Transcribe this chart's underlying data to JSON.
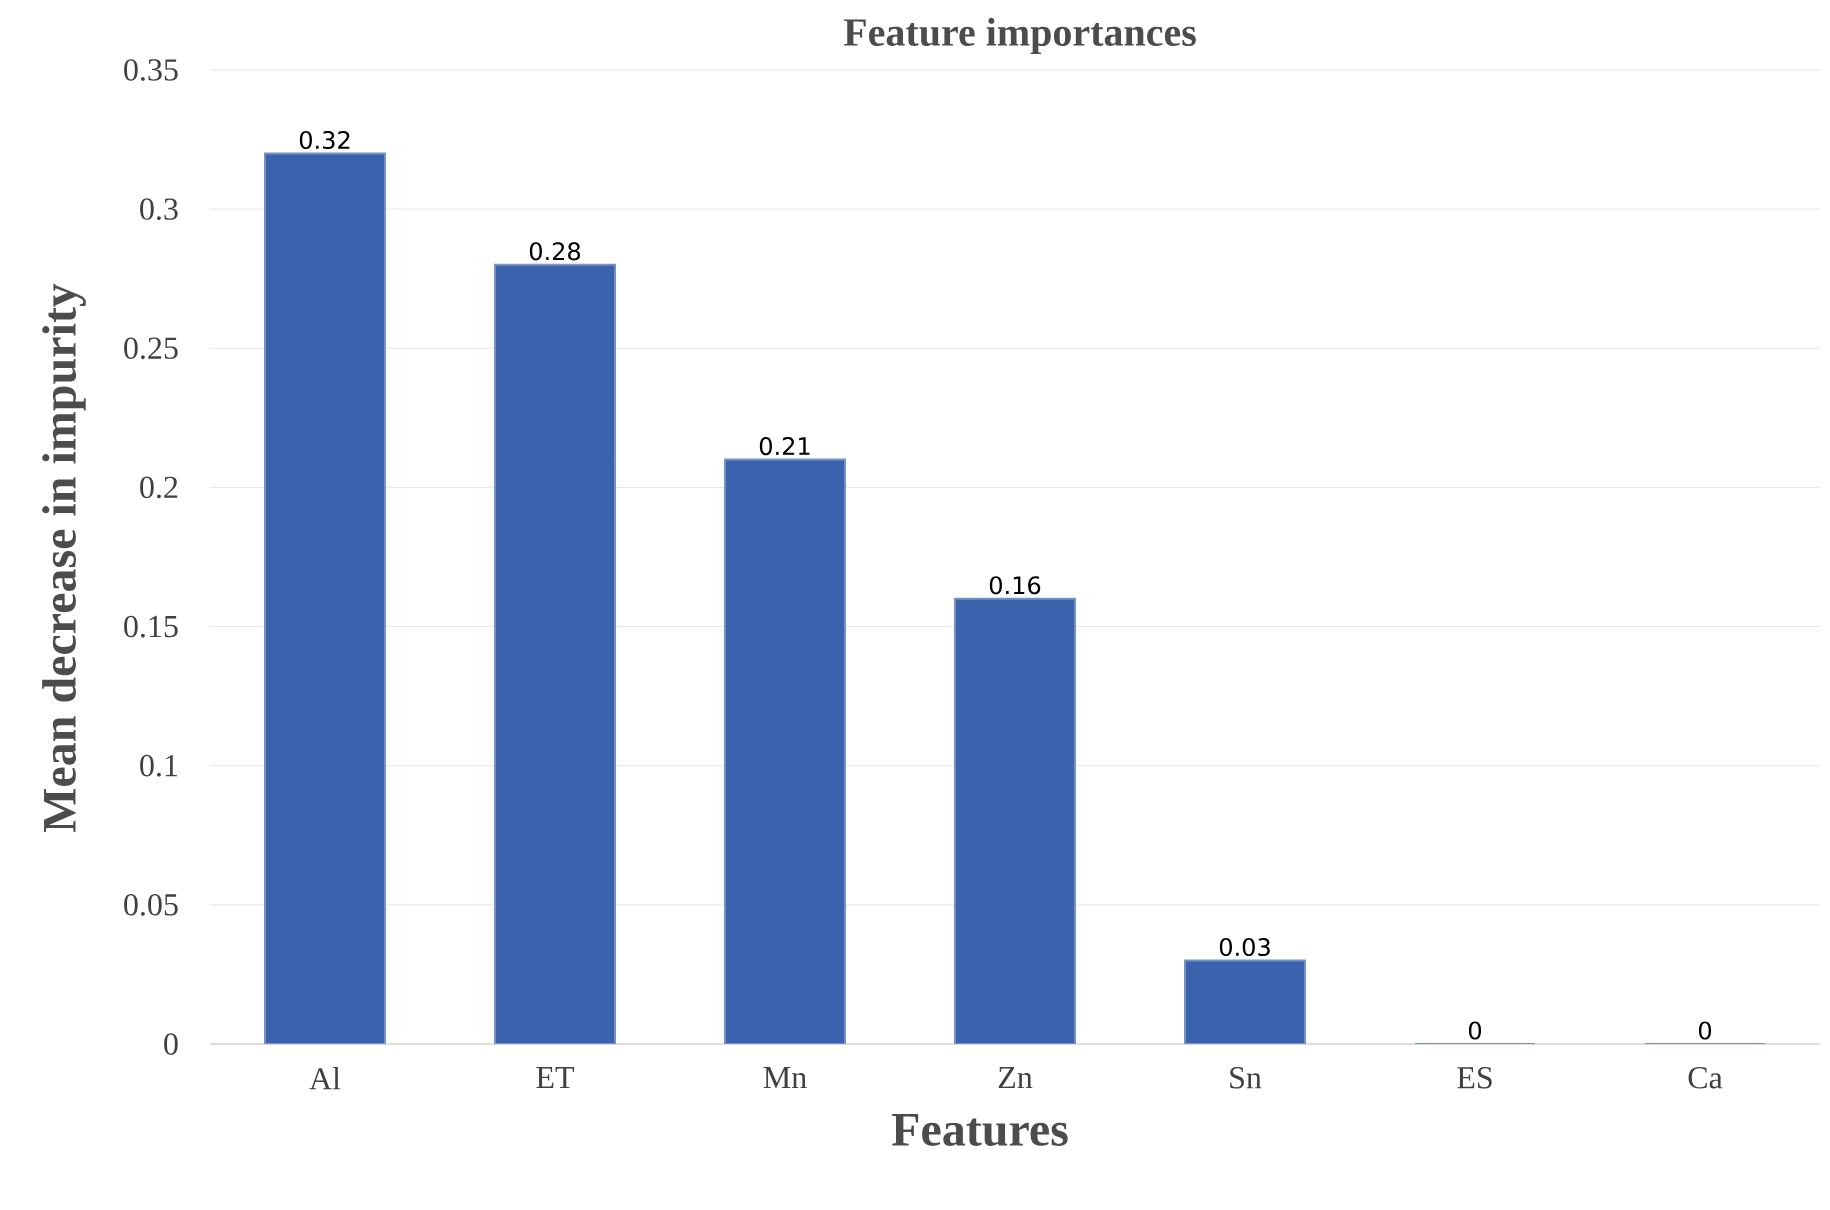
{
  "chart_data": {
    "type": "bar",
    "title": "Feature importances",
    "xlabel": "Features",
    "ylabel": "Mean decrease in impurity",
    "categories": [
      "Al",
      "ET",
      "Mn",
      "Zn",
      "Sn",
      "ES",
      "Ca"
    ],
    "values": [
      0.32,
      0.28,
      0.21,
      0.16,
      0.03,
      0,
      0
    ],
    "color": "#3a62ad",
    "ylim": [
      0,
      0.35
    ],
    "yticks": [
      0,
      0.05,
      0.1,
      0.15,
      0.2,
      0.25,
      0.3,
      0.35
    ],
    "grid": "y",
    "data_labels": true
  }
}
